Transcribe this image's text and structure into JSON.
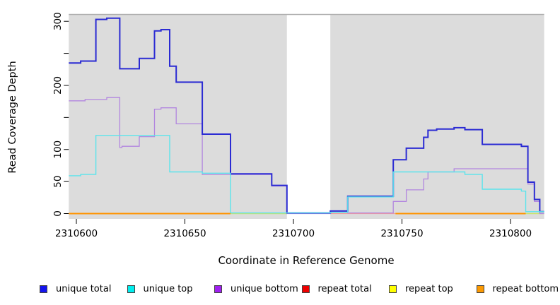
{
  "figure": {
    "y_axis": {
      "label": "Read Coverage Depth",
      "ticks": [
        0,
        50,
        100,
        200,
        300
      ],
      "minor_ticks": [
        150,
        250
      ],
      "range": [
        0,
        300
      ]
    },
    "x_axis": {
      "label": "Coordinate in Reference Genome",
      "ticks": [
        2310600,
        2310650,
        2310700,
        2310750,
        2310800
      ],
      "range": [
        2310596.5,
        2310815.5
      ]
    },
    "panel": {
      "bg": "#DCDCDC",
      "top_edge_color": "#B0B0B0",
      "masked_region": [
        2310697,
        2310717
      ]
    },
    "legend": [
      {
        "key": "unique-total",
        "label": "unique total",
        "color": "#1414EE"
      },
      {
        "key": "unique-top",
        "label": "unique top",
        "color": "#00EEEE"
      },
      {
        "key": "unique-bottom",
        "label": "unique bottom",
        "color": "#A020F0"
      },
      {
        "key": "repeat-total",
        "label": "repeat total",
        "color": "#EE0000"
      },
      {
        "key": "repeat-top",
        "label": "repeat top",
        "color": "#FFFF00"
      },
      {
        "key": "repeat-bottom",
        "label": "repeat bottom",
        "color": "#FB9902"
      }
    ]
  },
  "chart_data": {
    "type": "line",
    "step": true,
    "title": "",
    "xlabel": "Coordinate in Reference Genome",
    "ylabel": "Read Coverage Depth",
    "xlim": [
      2310596.5,
      2310815.5
    ],
    "ylim": [
      0,
      300
    ],
    "grid": false,
    "legend_position": "bottom",
    "masked_region": [
      2310697,
      2310717
    ],
    "series": [
      {
        "name": "repeat total",
        "key": "repeat-total",
        "line_color": "#F29C9C",
        "width": 1.3,
        "segments": [
          [
            [
              2310717,
              0
            ],
            [
              2310747,
              0
            ]
          ]
        ]
      },
      {
        "name": "repeat top",
        "key": "repeat-top",
        "line_color": "#CBE36A",
        "width": 1.5,
        "segments": [
          [
            [
              2310671,
              0
            ],
            [
              2310697,
              0
            ]
          ],
          [
            [
              2310807,
              0
            ],
            [
              2310815.5,
              0
            ]
          ]
        ]
      },
      {
        "name": "unique bottom",
        "key": "unique-bottom",
        "line_color": "#B286DF",
        "width": 1.3,
        "segments": [
          [
            [
              2310596.5,
              176
            ],
            [
              2310604,
              178
            ],
            [
              2310614,
              181
            ],
            [
              2310620,
              103
            ],
            [
              2310621,
              105
            ],
            [
              2310629,
              120
            ],
            [
              2310636,
              163
            ],
            [
              2310639,
              165
            ],
            [
              2310646,
              140
            ],
            [
              2310658,
              61
            ],
            [
              2310690,
              43
            ],
            [
              2310697,
              0
            ],
            [
              2310717,
              2
            ],
            [
              2310725,
              1
            ],
            [
              2310746,
              19
            ],
            [
              2310752,
              37
            ],
            [
              2310760,
              54
            ],
            [
              2310762,
              65
            ],
            [
              2310774,
              70
            ],
            [
              2310808,
              46
            ],
            [
              2310811,
              19
            ],
            [
              2310813.5,
              0
            ],
            [
              2310815.5,
              0
            ]
          ]
        ]
      },
      {
        "name": "unique total",
        "key": "unique-total",
        "line_color": "#2B2BD3",
        "width": 2,
        "segments": [
          [
            [
              2310596.5,
              235
            ],
            [
              2310602,
              238
            ],
            [
              2310609,
              303
            ],
            [
              2310614,
              305
            ],
            [
              2310620,
              226
            ],
            [
              2310629,
              242
            ],
            [
              2310636,
              285
            ],
            [
              2310639,
              287
            ],
            [
              2310643,
              230
            ],
            [
              2310646,
              205
            ],
            [
              2310658,
              124
            ],
            [
              2310671,
              62
            ],
            [
              2310690,
              44
            ],
            [
              2310697,
              1
            ],
            [
              2310717,
              4
            ],
            [
              2310725,
              27
            ],
            [
              2310746,
              84
            ],
            [
              2310752,
              102
            ],
            [
              2310760,
              119
            ],
            [
              2310762,
              130
            ],
            [
              2310766,
              132
            ],
            [
              2310774,
              134
            ],
            [
              2310779,
              131
            ],
            [
              2310787,
              108
            ],
            [
              2310805,
              105
            ],
            [
              2310808,
              49
            ],
            [
              2310811,
              22
            ],
            [
              2310813.5,
              3
            ],
            [
              2310815.5,
              3
            ]
          ]
        ]
      },
      {
        "name": "unique top",
        "key": "unique-top",
        "line_color": "#5BE4EC",
        "width": 1.4,
        "segments": [
          [
            [
              2310596.5,
              59
            ],
            [
              2310602,
              61
            ],
            [
              2310609,
              122
            ],
            [
              2310643,
              65
            ],
            [
              2310658,
              63
            ],
            [
              2310671,
              1
            ],
            [
              2310697,
              1
            ],
            [
              2310717,
              2
            ],
            [
              2310725,
              26
            ],
            [
              2310746,
              65
            ],
            [
              2310779,
              61
            ],
            [
              2310787,
              38
            ],
            [
              2310805,
              35
            ],
            [
              2310807,
              3
            ],
            [
              2310815.5,
              3
            ]
          ]
        ]
      },
      {
        "name": "repeat bottom",
        "key": "repeat-bottom",
        "line_color": "#FF9300",
        "width": 2,
        "segments": [
          [
            [
              2310596.5,
              0
            ],
            [
              2310671,
              0
            ]
          ],
          [
            [
              2310747,
              0
            ],
            [
              2310807,
              0
            ]
          ]
        ]
      }
    ]
  }
}
